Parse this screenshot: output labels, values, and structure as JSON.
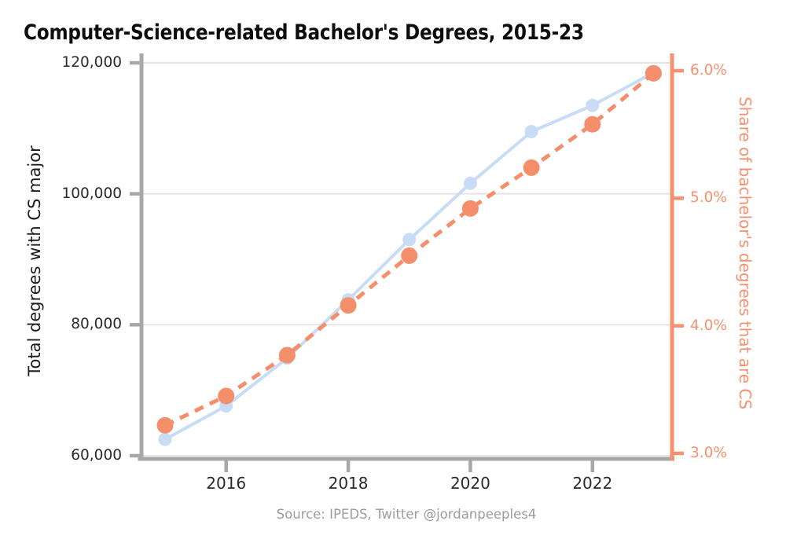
{
  "title": "Computer-Science-related Bachelor's Degrees, 2015-23",
  "source": "Source: IPEDS, Twitter @jordanpeeples4",
  "chart_data": {
    "type": "line",
    "x": [
      2015,
      2016,
      2017,
      2018,
      2019,
      2020,
      2021,
      2022,
      2023
    ],
    "series": [
      {
        "id": "total-degrees",
        "name": "Total degrees with CS major",
        "axis": "left",
        "style": "solid",
        "color": "#c8dcf6",
        "values": [
          62500,
          67600,
          74900,
          83800,
          93000,
          101600,
          109500,
          113500,
          118500
        ]
      },
      {
        "id": "cs-share",
        "name": "Share of bachelor's degrees that are CS",
        "axis": "right",
        "style": "dashed",
        "color": "#f58e6b",
        "values": [
          3.22,
          3.45,
          3.77,
          4.16,
          4.55,
          4.92,
          5.24,
          5.58,
          5.98
        ]
      }
    ],
    "left_axis": {
      "label": "Total degrees with CS major",
      "ticks": [
        120000,
        100000,
        80000,
        60000
      ],
      "tick_labels": [
        "120,000",
        "100,000",
        "80,000",
        "60,000"
      ],
      "ylim": [
        60000,
        120000
      ],
      "spine_color": "#a8a8a8",
      "text_color": "#2a2a2a"
    },
    "right_axis": {
      "label": "Share of bachelor's degrees that are CS",
      "ticks": [
        6.0,
        5.0,
        4.0,
        3.0
      ],
      "tick_labels": [
        "6.0%",
        "5.0%",
        "4.0%",
        "3.0%"
      ],
      "ylim": [
        3.0,
        6.0
      ],
      "spine_color": "#f6916f",
      "text_color": "#f6916f"
    },
    "x_axis": {
      "ticks": [
        2016,
        2018,
        2020,
        2022
      ],
      "tick_labels": [
        "2016",
        "2018",
        "2020",
        "2022"
      ],
      "xlim": [
        2014.6,
        2023.3
      ]
    },
    "grid": "horizontal",
    "legend": "none"
  }
}
